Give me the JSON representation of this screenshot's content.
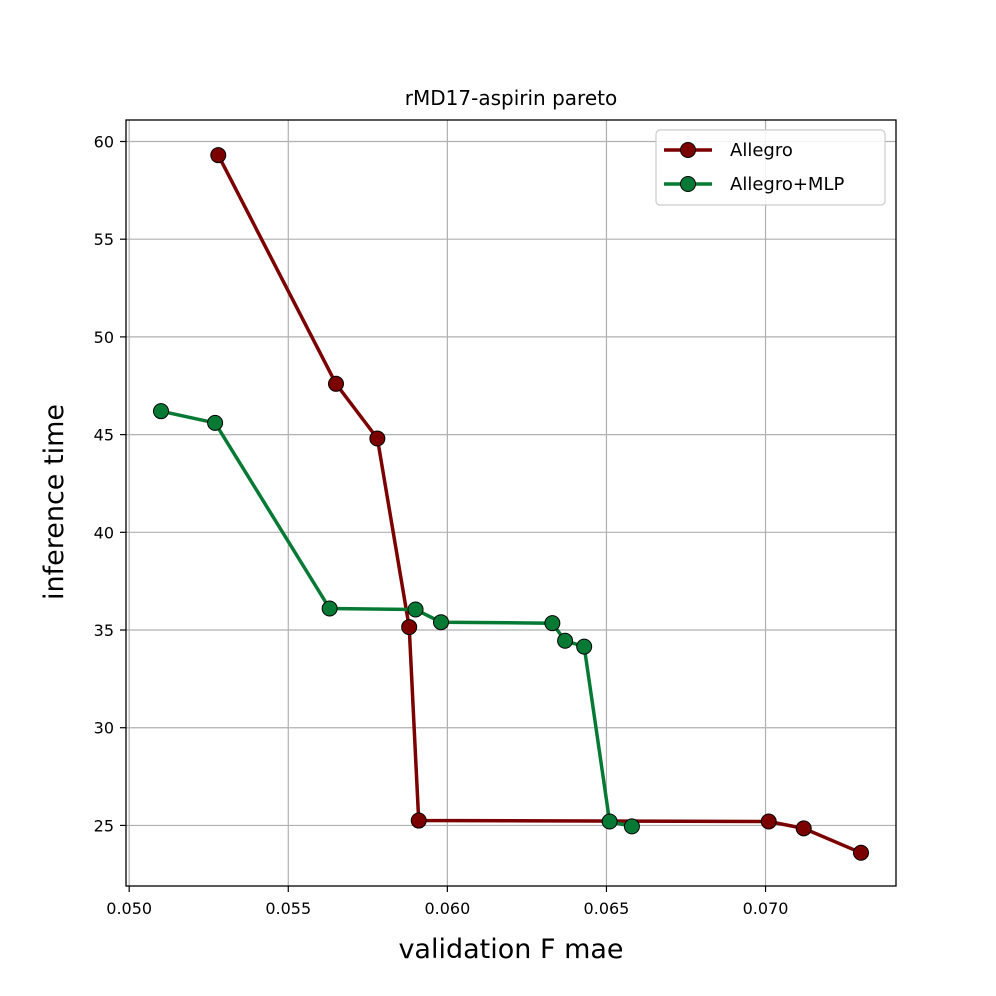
{
  "chart_data": {
    "type": "line",
    "title": "rMD17-aspirin pareto",
    "xlabel": "validation F mae",
    "ylabel": "inference time",
    "xlim": [
      0.0499,
      0.0741
    ],
    "ylim": [
      21.9,
      61.1
    ],
    "x_ticks": [
      0.05,
      0.055,
      0.06,
      0.065,
      0.07
    ],
    "x_tick_labels": [
      "0.050",
      "0.055",
      "0.060",
      "0.065",
      "0.070"
    ],
    "y_ticks": [
      25,
      30,
      35,
      40,
      45,
      50,
      55,
      60
    ],
    "y_tick_labels": [
      "25",
      "30",
      "35",
      "40",
      "45",
      "50",
      "55",
      "60"
    ],
    "grid": true,
    "legend_position": "top-right",
    "series": [
      {
        "name": "Allegro",
        "color": "#7b0000",
        "x": [
          0.0528,
          0.0565,
          0.0578,
          0.0588,
          0.0591,
          0.0701,
          0.0712,
          0.073
        ],
        "y": [
          59.3,
          47.6,
          44.8,
          35.15,
          25.25,
          25.2,
          24.85,
          23.6
        ]
      },
      {
        "name": "Allegro+MLP",
        "color": "#067a35",
        "x": [
          0.051,
          0.0527,
          0.0563,
          0.059,
          0.0598,
          0.0633,
          0.0637,
          0.0643,
          0.0651,
          0.0658
        ],
        "y": [
          46.2,
          45.6,
          36.1,
          36.05,
          35.4,
          35.35,
          34.45,
          34.15,
          25.2,
          24.95
        ]
      }
    ]
  }
}
